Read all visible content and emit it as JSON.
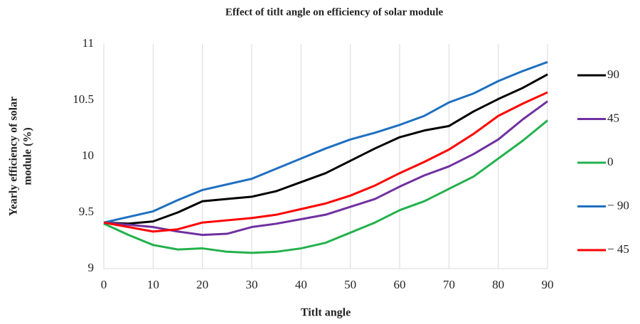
{
  "chart_data": {
    "type": "line",
    "title": "Effect of titlt angle on efficiency of solar module",
    "xlabel": "Titlt angle",
    "ylabel": [
      "Yearly efficiency of solar",
      "module (%)"
    ],
    "x": [
      0,
      5,
      10,
      15,
      20,
      25,
      30,
      35,
      40,
      45,
      50,
      55,
      60,
      65,
      70,
      75,
      80,
      85,
      90
    ],
    "series": [
      {
        "name": "90",
        "color": "#000000",
        "values": [
          9.41,
          9.4,
          9.42,
          9.5,
          9.6,
          9.62,
          9.64,
          9.69,
          9.77,
          9.85,
          9.96,
          10.07,
          10.17,
          10.23,
          10.27,
          10.4,
          10.51,
          10.61,
          10.73
        ]
      },
      {
        "name": "45",
        "color": "#7030a0",
        "values": [
          9.41,
          9.39,
          9.37,
          9.33,
          9.3,
          9.31,
          9.37,
          9.4,
          9.44,
          9.48,
          9.55,
          9.62,
          9.73,
          9.83,
          9.91,
          10.02,
          10.15,
          10.33,
          10.49
        ]
      },
      {
        "name": "0",
        "color": "#22b14c",
        "values": [
          9.4,
          9.3,
          9.21,
          9.17,
          9.18,
          9.15,
          9.14,
          9.15,
          9.18,
          9.23,
          9.32,
          9.41,
          9.52,
          9.6,
          9.71,
          9.82,
          9.98,
          10.14,
          10.32
        ]
      },
      {
        "name": "− 90",
        "color": "#1f6fc0",
        "values": [
          9.41,
          9.46,
          9.51,
          9.61,
          9.7,
          9.75,
          9.8,
          9.89,
          9.98,
          10.07,
          10.15,
          10.21,
          10.28,
          10.36,
          10.48,
          10.56,
          10.67,
          10.76,
          10.84
        ]
      },
      {
        "name": "− 45",
        "color": "#ff0000",
        "values": [
          9.41,
          9.37,
          9.33,
          9.35,
          9.41,
          9.43,
          9.45,
          9.48,
          9.53,
          9.58,
          9.65,
          9.74,
          9.85,
          9.95,
          10.06,
          10.2,
          10.36,
          10.47,
          10.57
        ]
      }
    ],
    "xlim": [
      0,
      90
    ],
    "xticks": [
      0,
      10,
      20,
      30,
      40,
      50,
      60,
      70,
      80,
      90
    ],
    "ylim": [
      9,
      11
    ],
    "yticks": [
      9,
      9.5,
      10,
      10.5,
      11
    ],
    "grid": "x",
    "legend": "right"
  }
}
